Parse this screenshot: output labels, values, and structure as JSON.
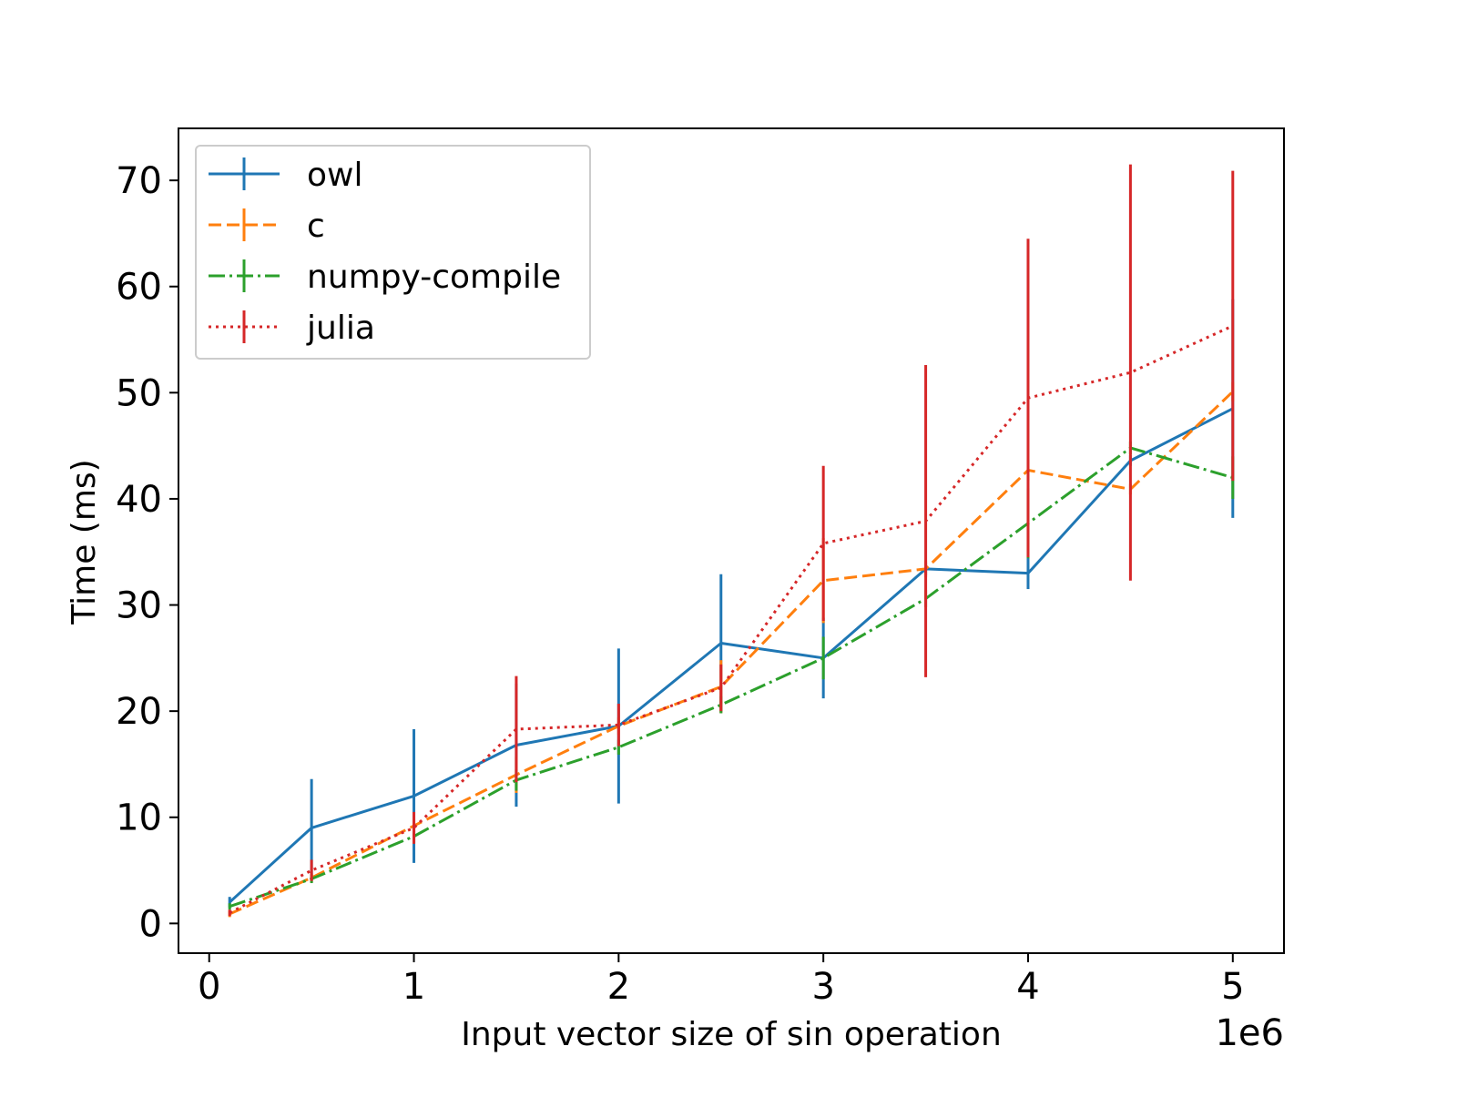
{
  "chart_data": {
    "type": "line",
    "title": "",
    "xlabel": "Input vector size of sin operation",
    "ylabel": "Time (ms)",
    "x_offset_text": "1e6",
    "xlim": [
      -150000,
      5250000
    ],
    "ylim": [
      -2.8,
      74.9
    ],
    "x_ticks": [
      0,
      1000000,
      2000000,
      3000000,
      4000000,
      5000000
    ],
    "x_tick_labels": [
      "0",
      "1",
      "2",
      "3",
      "4",
      "5"
    ],
    "y_ticks": [
      0,
      10,
      20,
      30,
      40,
      50,
      60,
      70
    ],
    "y_tick_labels": [
      "0",
      "10",
      "20",
      "30",
      "40",
      "50",
      "60",
      "70"
    ],
    "grid": false,
    "legend_position": "top-left",
    "x": [
      100000,
      500000,
      1000000,
      1500000,
      2000000,
      2500000,
      3000000,
      3500000,
      4000000,
      4500000,
      5000000
    ],
    "series": [
      {
        "name": "owl",
        "color": "#1f77b4",
        "linestyle": "solid",
        "values": [
          2.0,
          9.0,
          12.0,
          16.8,
          18.6,
          26.4,
          25.0,
          33.4,
          33.0,
          43.6,
          48.5
        ],
        "error": [
          0.5,
          4.6,
          6.3,
          5.8,
          7.3,
          6.5,
          3.8,
          0.6,
          1.5,
          0.5,
          10.3
        ]
      },
      {
        "name": "c",
        "color": "#ff7f0e",
        "linestyle": "dashed",
        "values": [
          0.9,
          4.3,
          9.2,
          14.0,
          18.6,
          22.3,
          32.3,
          33.4,
          42.7,
          40.9,
          50.1
        ],
        "error": [
          0.3,
          0.4,
          0.6,
          1.7,
          0.8,
          2.5,
          4.0,
          0.8,
          1.0,
          0.5,
          0.9
        ]
      },
      {
        "name": "numpy-compile",
        "color": "#2ca02c",
        "linestyle": "dashdot",
        "values": [
          1.6,
          4.2,
          8.2,
          13.5,
          16.6,
          20.6,
          25.0,
          30.6,
          37.7,
          44.8,
          42.0
        ],
        "error": [
          0.3,
          0.4,
          0.6,
          1.0,
          0.7,
          0.8,
          2.0,
          0.8,
          3.3,
          0.6,
          2.0
        ]
      },
      {
        "name": "julia",
        "color": "#d62728",
        "linestyle": "dotted",
        "values": [
          1.0,
          5.0,
          9.0,
          18.3,
          18.7,
          22.2,
          35.8,
          37.9,
          49.5,
          51.9,
          56.3
        ],
        "error": [
          0.3,
          1.0,
          1.5,
          5.0,
          2.0,
          2.2,
          7.3,
          14.7,
          15.0,
          19.6,
          14.6
        ]
      }
    ]
  }
}
